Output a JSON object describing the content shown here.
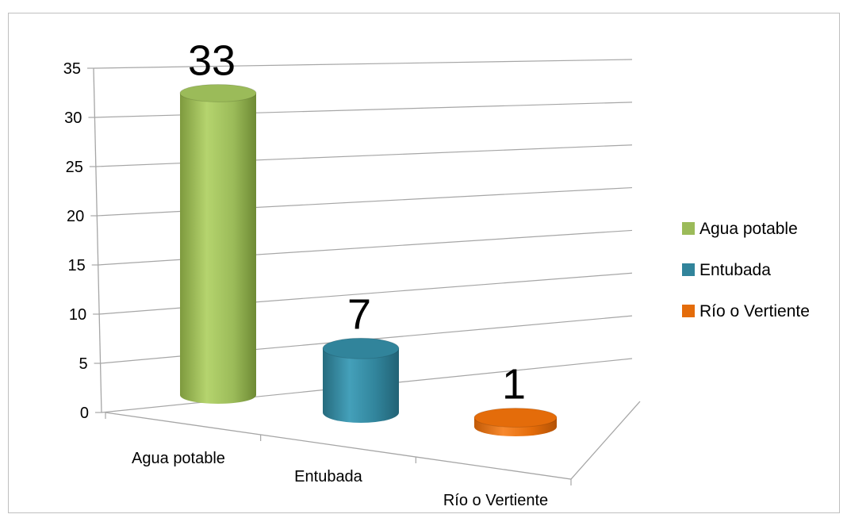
{
  "chart_data": {
    "type": "bar",
    "style": "3d-cylinder",
    "categories": [
      "Agua potable",
      "Entubada",
      "Río o Vertiente"
    ],
    "values": [
      33,
      7,
      1
    ],
    "data_labels": [
      "33",
      "7",
      "1"
    ],
    "colors": [
      "#9BBB59",
      "#31849B",
      "#E46C0A"
    ],
    "ylim": [
      0,
      35
    ],
    "yticks": [
      "0",
      "5",
      "10",
      "15",
      "20",
      "25",
      "30",
      "35"
    ],
    "grid": true,
    "legend_position": "right",
    "legend": [
      {
        "label": "Agua potable",
        "color": "#9BBB59"
      },
      {
        "label": "Entubada",
        "color": "#31849B"
      },
      {
        "label": "Río o Vertiente",
        "color": "#E46C0A"
      }
    ]
  }
}
